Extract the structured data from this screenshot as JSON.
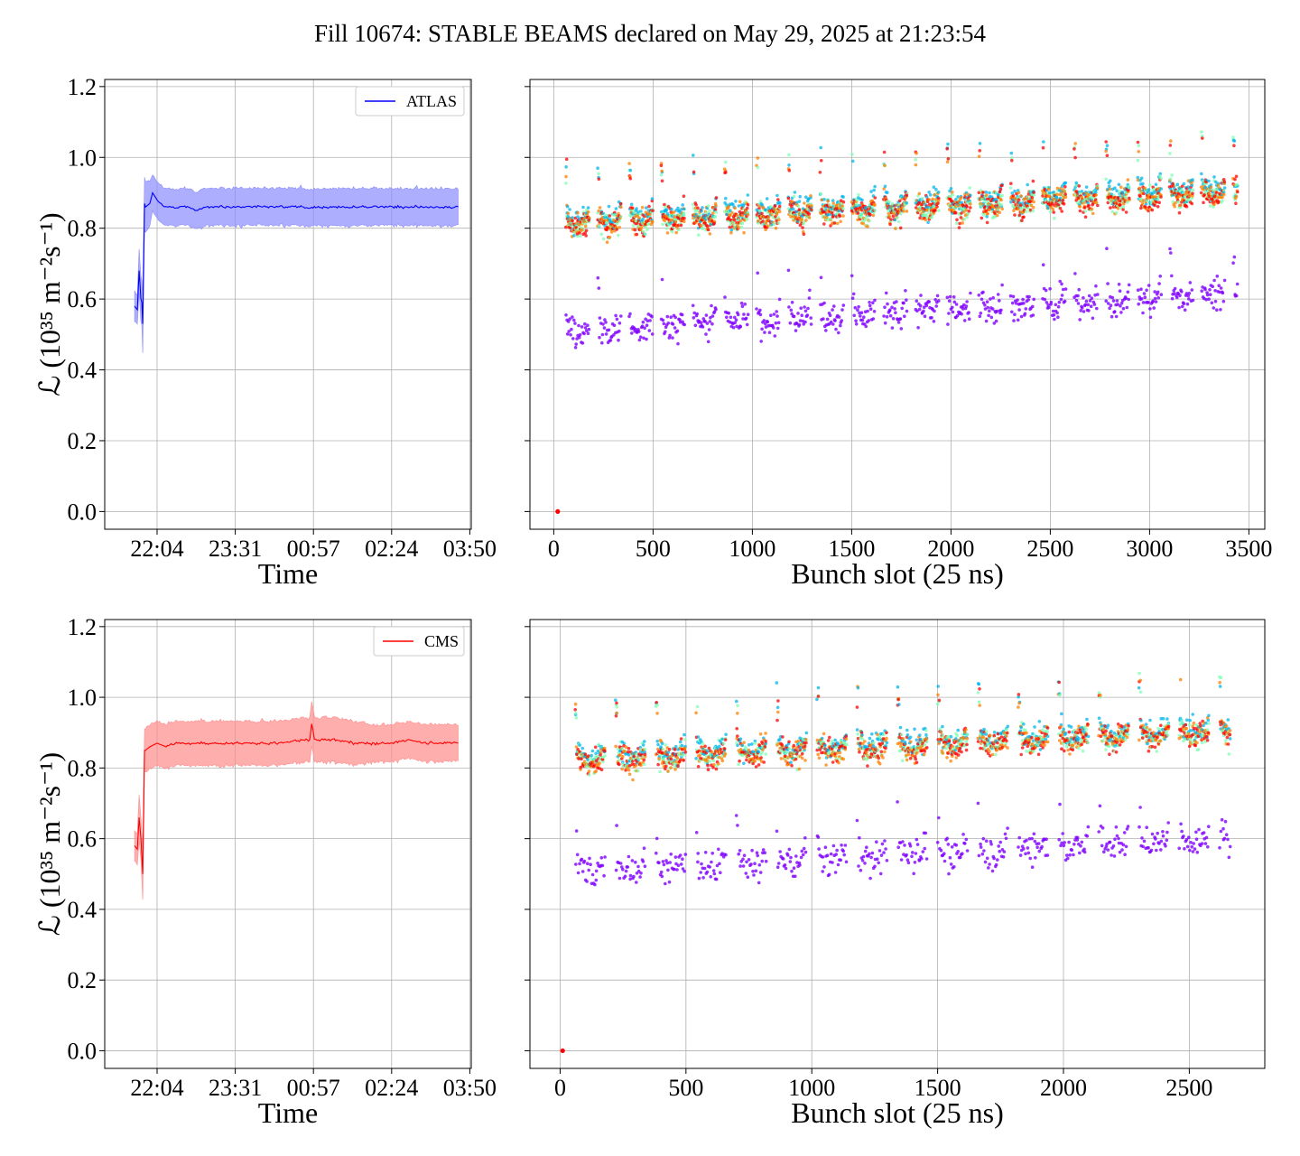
{
  "title": "Fill 10674: STABLE BEAMS declared on May 29, 2025 at 21:23:54",
  "ylabel_math": "ℒ (10³⁵ m⁻²s⁻¹)",
  "colors": {
    "atlas": "#0000ff",
    "atlas_band": "#8c8cff",
    "cms": "#ff0000",
    "cms_band": "#ff8c8c",
    "grid": "#b0b0b0",
    "rainbow": [
      "#8000ff",
      "#00b5eb",
      "#80ffb4",
      "#ff8000",
      "#ff0000"
    ]
  },
  "chart_data": [
    {
      "type": "line",
      "panel": "top-left",
      "legend": "ATLAS",
      "legend_position": "top-right",
      "xlabel": "Time",
      "xticks": [
        "22:04",
        "23:31",
        "00:57",
        "02:24",
        "03:50"
      ],
      "ylim": [
        -0.05,
        1.22
      ],
      "yticks": [
        "0.0",
        "0.2",
        "0.4",
        "0.6",
        "0.8",
        "1.0",
        "1.2"
      ],
      "grid": true,
      "series": [
        {
          "name": "ATLAS",
          "x_minutes_after_22_04": [
            -25,
            -22,
            -20,
            -18,
            -17,
            -16,
            -14,
            -13,
            -8,
            -5,
            0,
            3,
            8,
            15,
            25,
            35,
            45,
            55,
            70,
            85,
            100,
            115,
            130,
            145,
            160,
            175,
            190,
            205,
            220,
            235,
            250,
            265,
            280,
            295,
            310,
            325,
            335
          ],
          "y": [
            0.58,
            0.57,
            0.68,
            0.6,
            0.59,
            0.53,
            0.87,
            0.86,
            0.87,
            0.9,
            0.88,
            0.87,
            0.86,
            0.86,
            0.86,
            0.86,
            0.85,
            0.86,
            0.86,
            0.86,
            0.86,
            0.86,
            0.86,
            0.86,
            0.86,
            0.86,
            0.86,
            0.86,
            0.86,
            0.86,
            0.86,
            0.86,
            0.86,
            0.86,
            0.86,
            0.86,
            0.86
          ],
          "band_halfwidth": [
            0.04,
            0.04,
            0.06,
            0.06,
            0.06,
            0.08,
            0.07,
            0.07,
            0.06,
            0.05,
            0.05,
            0.05,
            0.05,
            0.05,
            0.05,
            0.05,
            0.05,
            0.05,
            0.05,
            0.05,
            0.05,
            0.05,
            0.05,
            0.05,
            0.05,
            0.05,
            0.05,
            0.05,
            0.05,
            0.05,
            0.05,
            0.05,
            0.05,
            0.05,
            0.05,
            0.05,
            0.05
          ]
        }
      ]
    },
    {
      "type": "scatter",
      "panel": "top-right",
      "xlabel": "Bunch slot (25 ns)",
      "xlim": [
        -120,
        3580
      ],
      "xticks": [
        0,
        500,
        1000,
        1500,
        2000,
        2500,
        3000,
        3500
      ],
      "ylim": [
        -0.05,
        1.22
      ],
      "grid": true,
      "slot_range": [
        60,
        3440
      ],
      "upper_level_start": 0.83,
      "upper_level_end": 0.92,
      "lower_level_start": 0.53,
      "lower_level_end": 0.64,
      "zero_point": [
        20,
        0.0
      ]
    },
    {
      "type": "line",
      "panel": "bottom-left",
      "legend": "CMS",
      "legend_position": "top-right",
      "xlabel": "Time",
      "xticks": [
        "22:04",
        "23:31",
        "00:57",
        "02:24",
        "03:50"
      ],
      "ylim": [
        -0.05,
        1.22
      ],
      "yticks": [
        "0.0",
        "0.2",
        "0.4",
        "0.6",
        "0.8",
        "1.0",
        "1.2"
      ],
      "grid": true,
      "series": [
        {
          "name": "CMS",
          "x_minutes_after_22_04": [
            -25,
            -22,
            -20,
            -18,
            -16,
            -14,
            -13,
            -8,
            0,
            10,
            20,
            40,
            60,
            80,
            100,
            120,
            140,
            160,
            170,
            172,
            175,
            200,
            220,
            240,
            260,
            280,
            300,
            320,
            335
          ],
          "y": [
            0.58,
            0.57,
            0.66,
            0.6,
            0.5,
            0.85,
            0.85,
            0.86,
            0.87,
            0.86,
            0.87,
            0.87,
            0.87,
            0.87,
            0.87,
            0.87,
            0.87,
            0.88,
            0.88,
            0.93,
            0.88,
            0.88,
            0.87,
            0.87,
            0.87,
            0.88,
            0.87,
            0.87,
            0.87
          ],
          "band_halfwidth": [
            0.04,
            0.04,
            0.06,
            0.06,
            0.07,
            0.06,
            0.06,
            0.06,
            0.06,
            0.06,
            0.06,
            0.06,
            0.06,
            0.06,
            0.06,
            0.06,
            0.06,
            0.06,
            0.06,
            0.06,
            0.06,
            0.06,
            0.06,
            0.05,
            0.05,
            0.05,
            0.05,
            0.05,
            0.05
          ]
        }
      ]
    },
    {
      "type": "scatter",
      "panel": "bottom-right",
      "xlabel": "Bunch slot (25 ns)",
      "xlim": [
        -120,
        2800
      ],
      "xticks": [
        0,
        500,
        1000,
        1500,
        2000,
        2500
      ],
      "ylim": [
        -0.05,
        1.22
      ],
      "grid": true,
      "slot_range": [
        60,
        2660
      ],
      "upper_level_start": 0.84,
      "upper_level_end": 0.92,
      "lower_level_start": 0.53,
      "lower_level_end": 0.62,
      "zero_point": [
        10,
        0.0
      ]
    }
  ]
}
